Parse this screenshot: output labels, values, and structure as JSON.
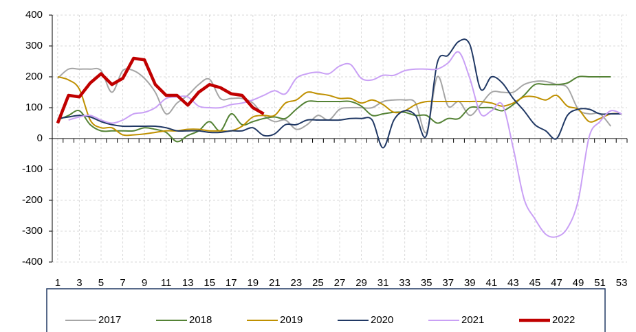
{
  "chart_data": {
    "type": "line",
    "categories": [
      "1",
      null,
      "3",
      null,
      "5",
      null,
      "7",
      null,
      "9",
      null,
      "11",
      null,
      "13",
      null,
      "15",
      null,
      "17",
      null,
      "19",
      null,
      "21",
      null,
      "23",
      null,
      "25",
      null,
      "27",
      null,
      "29",
      null,
      "31",
      null,
      "33",
      null,
      "35",
      null,
      "37",
      null,
      "39",
      null,
      "41",
      null,
      "43",
      null,
      "45",
      null,
      "47",
      null,
      "49",
      null,
      "51",
      null,
      "53"
    ],
    "ylim": [
      -400,
      400
    ],
    "yticks": [
      -400,
      -300,
      -200,
      -100,
      0,
      100,
      200,
      300,
      400
    ],
    "grid": true,
    "legend": "bottom",
    "series": [
      {
        "name": "2017",
        "color": "#a6a6a6",
        "smooth": true,
        "values": [
          195,
          225,
          225,
          225,
          220,
          150,
          220,
          220,
          195,
          150,
          80,
          115,
          140,
          175,
          192,
          130,
          130,
          130,
          115,
          75,
          55,
          60,
          30,
          45,
          75,
          60,
          95,
          100,
          100,
          100,
          120,
          125,
          125,
          115,
          20,
          200,
          105,
          120,
          75,
          110,
          150,
          150,
          150,
          175,
          185,
          185,
          175,
          165,
          95,
          80,
          80,
          40,
          null
        ]
      },
      {
        "name": "2018",
        "color": "#548235",
        "smooth": true,
        "values": [
          60,
          75,
          90,
          45,
          25,
          25,
          25,
          25,
          35,
          30,
          20,
          -10,
          10,
          25,
          55,
          25,
          80,
          45,
          55,
          65,
          70,
          65,
          95,
          120,
          120,
          120,
          120,
          120,
          105,
          75,
          80,
          85,
          85,
          75,
          75,
          50,
          65,
          65,
          100,
          100,
          100,
          90,
          110,
          140,
          175,
          175,
          175,
          180,
          200,
          200,
          200,
          200,
          null
        ]
      },
      {
        "name": "2019",
        "color": "#bf9000",
        "smooth": true,
        "values": [
          200,
          190,
          160,
          60,
          35,
          35,
          12,
          12,
          15,
          20,
          25,
          25,
          30,
          30,
          25,
          25,
          25,
          40,
          70,
          75,
          75,
          115,
          125,
          150,
          145,
          140,
          130,
          130,
          115,
          125,
          110,
          85,
          90,
          110,
          120,
          120,
          120,
          120,
          120,
          120,
          115,
          105,
          115,
          135,
          135,
          125,
          140,
          105,
          95,
          55,
          65,
          80,
          80
        ]
      },
      {
        "name": "2020",
        "color": "#203864",
        "smooth": true,
        "values": [
          65,
          70,
          75,
          70,
          55,
          45,
          40,
          40,
          40,
          40,
          35,
          25,
          25,
          25,
          20,
          20,
          25,
          25,
          35,
          10,
          15,
          45,
          45,
          60,
          60,
          60,
          60,
          65,
          65,
          60,
          -30,
          60,
          90,
          75,
          10,
          245,
          270,
          315,
          305,
          160,
          200,
          180,
          130,
          90,
          45,
          25,
          0,
          75,
          95,
          95,
          80,
          80,
          80
        ]
      },
      {
        "name": "2021",
        "color": "#c9a0f5",
        "smooth": true,
        "values": [
          null,
          60,
          70,
          75,
          60,
          50,
          60,
          80,
          85,
          100,
          130,
          135,
          135,
          105,
          100,
          100,
          110,
          115,
          125,
          140,
          155,
          145,
          195,
          210,
          215,
          210,
          235,
          240,
          195,
          190,
          205,
          205,
          220,
          225,
          225,
          225,
          245,
          280,
          195,
          80,
          90,
          110,
          -30,
          -195,
          -260,
          -310,
          -318,
          -290,
          -200,
          5,
          55,
          90,
          80
        ]
      },
      {
        "name": "2022",
        "color": "#c00000",
        "smooth": false,
        "values": [
          50,
          140,
          135,
          180,
          210,
          175,
          195,
          260,
          255,
          175,
          140,
          140,
          108,
          150,
          175,
          165,
          145,
          140,
          100,
          80,
          null,
          null,
          null,
          null,
          null,
          null,
          null,
          null,
          null,
          null,
          null,
          null,
          null,
          null,
          null,
          null,
          null,
          null,
          null,
          null,
          null,
          null,
          null,
          null,
          null,
          null,
          null,
          null,
          null,
          null,
          null,
          null,
          null
        ]
      }
    ]
  }
}
